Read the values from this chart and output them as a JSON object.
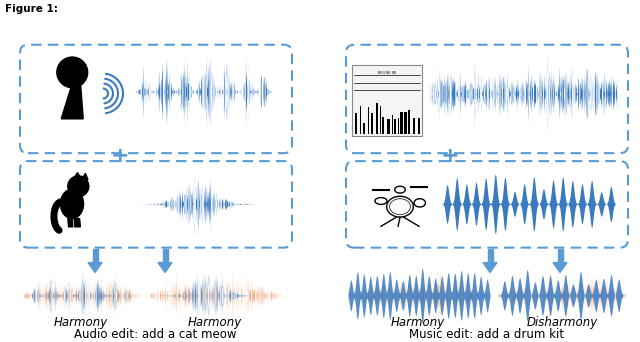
{
  "background_color": "#ffffff",
  "blue_color": "#3a7abf",
  "orange_color": "#f2a97e",
  "arrow_color": "#5b9bd5",
  "dashed_box_color": "#5b9bd5",
  "plus_color": "#5b9bd5",
  "labels": {
    "harmony1": "Harmony",
    "harmony2": "Harmony",
    "harmony3": "Harmony",
    "disharmony": "Disharmony",
    "audio_edit": "Audio edit: add a cat meow",
    "music_edit": "Music edit: add a drum kit"
  },
  "figure_label": "Figure 1:"
}
